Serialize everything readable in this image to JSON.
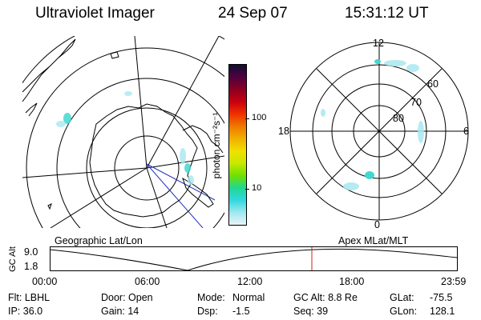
{
  "header": {
    "instrument": "Ultraviolet Imager",
    "date": "24 Sep 07",
    "time": "15:31:12 UT"
  },
  "colorbar": {
    "unit_label": "photon cm⁻²s⁻¹",
    "ticks": [
      "100",
      "10"
    ],
    "colors": [
      "#101030",
      "#500040",
      "#8a0020",
      "#c80010",
      "#f03000",
      "#f07800",
      "#f0b000",
      "#f0e000",
      "#c8e800",
      "#70e000",
      "#20d890",
      "#30d8e0",
      "#a0e8f0",
      "#e8f4f8"
    ]
  },
  "left_map": {
    "caption": "Geographic Lat/Lon"
  },
  "right_map": {
    "caption": "Apex MLat/MLT",
    "mlt_labels": {
      "top": "12",
      "left": "18",
      "right": "6",
      "bottom": "0"
    },
    "lat_labels": [
      "60",
      "70",
      "80"
    ]
  },
  "altitude_plot": {
    "ylabel": "GC Alt",
    "yticks": [
      "9.0",
      "1.8"
    ],
    "xticks": [
      "00:00",
      "06:00",
      "12:00",
      "18:00",
      "23:59"
    ],
    "marker_time": "15:31:12",
    "marker_color": "#d02020"
  },
  "info": {
    "flt": "Flt: LBHL",
    "ip": "IP: 36.0",
    "door": "Door: Open",
    "gain": "Gain: 14",
    "mode_label": "Mode:",
    "mode_value": "Normal",
    "dsp_label": "Dsp:",
    "dsp_value": "-1.5",
    "gcalt": "GC Alt: 8.8 Re",
    "seq": "Seq: 39",
    "glat_label": "GLat:",
    "glat_value": "-75.5",
    "glon_label": "GLon:",
    "glon_value": "128.1"
  }
}
